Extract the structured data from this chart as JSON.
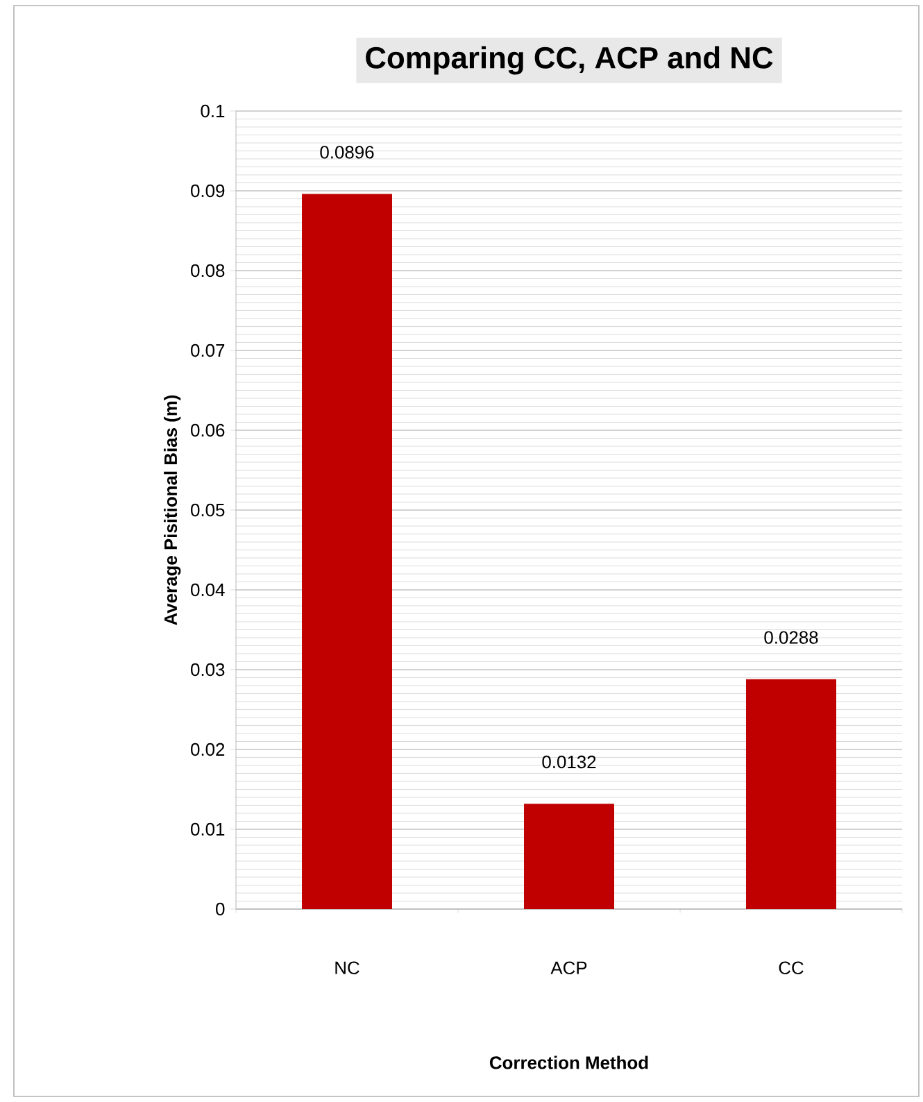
{
  "chart_data": {
    "type": "bar",
    "title": "Comparing CC, ACP and NC",
    "xlabel": "Correction Method",
    "ylabel": "Average Pisitional Bias (m)",
    "categories": [
      "NC",
      "ACP",
      "CC"
    ],
    "values": [
      0.0896,
      0.0132,
      0.0288
    ],
    "color": "#c00000",
    "ylim": [
      0,
      0.1
    ],
    "yticks": [
      0,
      0.01,
      0.02,
      0.03,
      0.04,
      0.05,
      0.06,
      0.07,
      0.08,
      0.09,
      0.1
    ],
    "grid": "y",
    "data_labels": true
  }
}
